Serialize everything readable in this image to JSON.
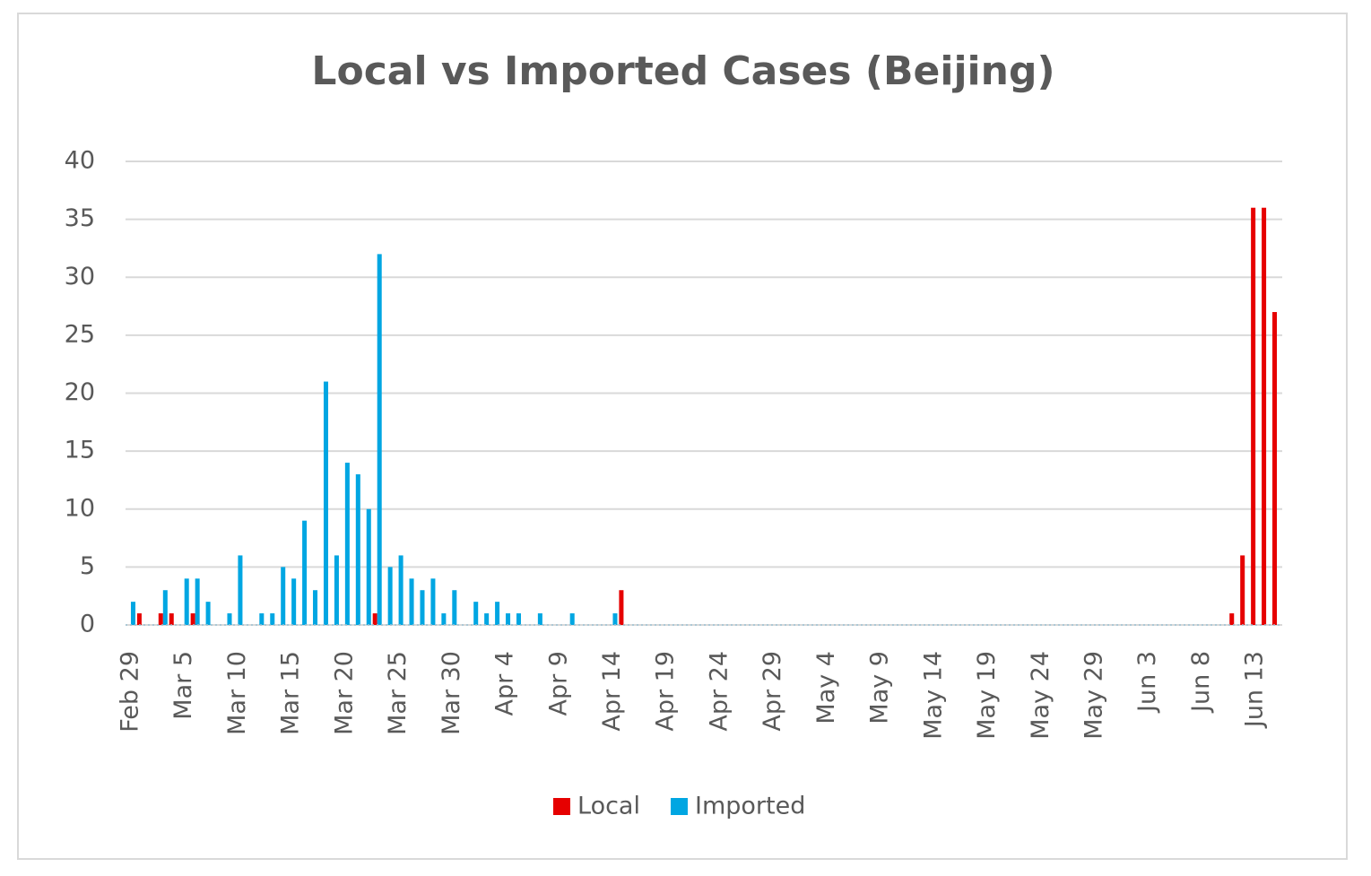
{
  "chart_data": {
    "type": "bar",
    "title": "Local vs Imported Cases (Beijing)",
    "categories": [
      "Feb 29",
      null,
      null,
      null,
      null,
      "Mar 5",
      null,
      null,
      null,
      null,
      "Mar 10",
      null,
      null,
      null,
      null,
      "Mar 15",
      null,
      null,
      null,
      null,
      "Mar 20",
      null,
      null,
      null,
      null,
      "Mar 25",
      null,
      null,
      null,
      null,
      "Mar 30",
      null,
      null,
      null,
      null,
      "Apr 4",
      null,
      null,
      null,
      null,
      "Apr 9",
      null,
      null,
      null,
      null,
      "Apr 14",
      null,
      null,
      null,
      null,
      "Apr 19",
      null,
      null,
      null,
      null,
      "Apr 24",
      null,
      null,
      null,
      null,
      "Apr 29",
      null,
      null,
      null,
      null,
      "May 4",
      null,
      null,
      null,
      null,
      "May 9",
      null,
      null,
      null,
      null,
      "May 14",
      null,
      null,
      null,
      null,
      "May 19",
      null,
      null,
      null,
      null,
      "May 24",
      null,
      null,
      null,
      null,
      "May 29",
      null,
      null,
      null,
      null,
      "Jun 3",
      null,
      null,
      null,
      null,
      "Jun 8",
      null,
      null,
      null,
      null,
      "Jun 13",
      null,
      null
    ],
    "series": [
      {
        "name": "Local",
        "color": "#e60000",
        "values": [
          0,
          1,
          0,
          1,
          1,
          0,
          1,
          0,
          0,
          0,
          0,
          0,
          0,
          0,
          0,
          0,
          0,
          0,
          0,
          0,
          0,
          0,
          0,
          1,
          0,
          0,
          0,
          0,
          0,
          0,
          0,
          0,
          0,
          0,
          0,
          0,
          0,
          0,
          0,
          0,
          0,
          0,
          0,
          0,
          0,
          0,
          3,
          0,
          0,
          0,
          0,
          0,
          0,
          0,
          0,
          0,
          0,
          0,
          0,
          0,
          0,
          0,
          0,
          0,
          0,
          0,
          0,
          0,
          0,
          0,
          0,
          0,
          0,
          0,
          0,
          0,
          0,
          0,
          0,
          0,
          0,
          0,
          0,
          0,
          0,
          0,
          0,
          0,
          0,
          0,
          0,
          0,
          0,
          0,
          0,
          0,
          0,
          0,
          0,
          0,
          0,
          0,
          0,
          1,
          6,
          36,
          36,
          27
        ]
      },
      {
        "name": "Imported",
        "color": "#00a6e2",
        "values": [
          2,
          0,
          0,
          3,
          0,
          4,
          4,
          2,
          0,
          1,
          6,
          0,
          1,
          1,
          5,
          4,
          9,
          3,
          21,
          6,
          14,
          13,
          10,
          32,
          5,
          6,
          4,
          3,
          4,
          1,
          3,
          0,
          2,
          1,
          2,
          1,
          1,
          0,
          1,
          0,
          0,
          1,
          0,
          0,
          0,
          1,
          0,
          0,
          0,
          0,
          0,
          0,
          0,
          0,
          0,
          0,
          0,
          0,
          0,
          0,
          0,
          0,
          0,
          0,
          0,
          0,
          0,
          0,
          0,
          0,
          0,
          0,
          0,
          0,
          0,
          0,
          0,
          0,
          0,
          0,
          0,
          0,
          0,
          0,
          0,
          0,
          0,
          0,
          0,
          0,
          0,
          0,
          0,
          0,
          0,
          0,
          0,
          0,
          0,
          0,
          0,
          0,
          0,
          0,
          0,
          0,
          0,
          0
        ]
      }
    ],
    "ylim": [
      0,
      40
    ],
    "yticks": [
      0,
      5,
      10,
      15,
      20,
      25,
      30,
      35,
      40
    ],
    "grid": true,
    "legend": "bottom"
  }
}
